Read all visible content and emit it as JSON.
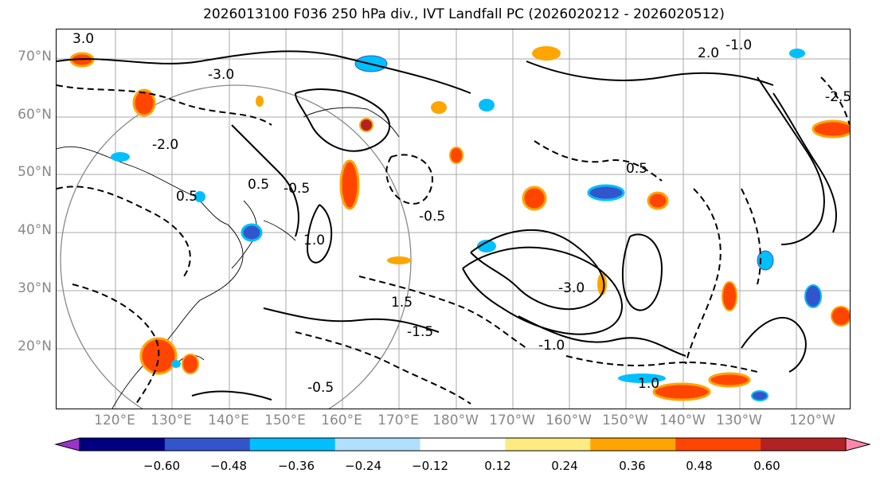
{
  "title": "2026013100 F036 250 hPa div., IVT Landfall PC (2026020212 - 2026020512)",
  "lat_labels": [
    "70°N",
    "60°N",
    "50°N",
    "40°N",
    "30°N",
    "20°N"
  ],
  "lon_labels": [
    "120°E",
    "130°E",
    "140°E",
    "150°E",
    "160°E",
    "170°E",
    "180°W",
    "170°W",
    "160°W",
    "150°W",
    "140°W",
    "130°W",
    "120°W"
  ],
  "colorbar": {
    "colors": [
      "#9933cc",
      "#000080",
      "#3355cc",
      "#00bfff",
      "#b0e0ff",
      "#ffffff",
      "#ffeb80",
      "#ffa500",
      "#ff4500",
      "#b22222",
      "#ff88aa"
    ],
    "ticks": [
      "−0.60",
      "−0.48",
      "−0.36",
      "−0.24",
      "−0.12",
      "0.12",
      "0.24",
      "0.36",
      "0.48",
      "0.60"
    ]
  },
  "contour_labels": [
    "3.0",
    "-3.0",
    "-1.5",
    "0.5",
    "-0.5",
    "1.0",
    "2.0",
    "-2.0",
    "1.5",
    "-1.0",
    "-2.5"
  ]
}
